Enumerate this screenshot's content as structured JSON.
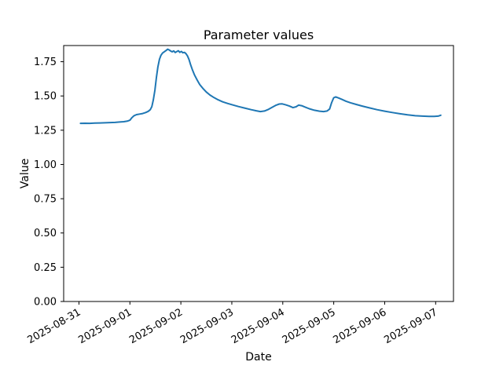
{
  "chart_data": {
    "type": "line",
    "title": "Parameter values",
    "xlabel": "Date",
    "ylabel": "Value",
    "grid": false,
    "legend": "none",
    "line_color": "#1f77b4",
    "axis_color": "#000000",
    "background_color": "#ffffff",
    "x_ticks": [
      {
        "label": "2025-08-31",
        "day": 0
      },
      {
        "label": "2025-09-01",
        "day": 1
      },
      {
        "label": "2025-09-02",
        "day": 2
      },
      {
        "label": "2025-09-03",
        "day": 3
      },
      {
        "label": "2025-09-04",
        "day": 4
      },
      {
        "label": "2025-09-05",
        "day": 5
      },
      {
        "label": "2025-09-06",
        "day": 6
      },
      {
        "label": "2025-09-07",
        "day": 7
      }
    ],
    "y_ticks": [
      {
        "label": "0.00",
        "value": 0.0
      },
      {
        "label": "0.25",
        "value": 0.25
      },
      {
        "label": "0.50",
        "value": 0.5
      },
      {
        "label": "0.75",
        "value": 0.75
      },
      {
        "label": "1.00",
        "value": 1.0
      },
      {
        "label": "1.25",
        "value": 1.25
      },
      {
        "label": "1.50",
        "value": 1.5
      },
      {
        "label": "1.75",
        "value": 1.75
      }
    ],
    "xlim_days": [
      -0.3,
      7.35
    ],
    "ylim": [
      0,
      1.868
    ],
    "x_tick_rotation_deg": 30,
    "series": [
      {
        "name": "parameter-value",
        "x_unit": "days since 2025-08-31",
        "points": [
          [
            0.03,
            1.3
          ],
          [
            0.12,
            1.301
          ],
          [
            0.21,
            1.3
          ],
          [
            0.31,
            1.302
          ],
          [
            0.41,
            1.303
          ],
          [
            0.51,
            1.304
          ],
          [
            0.61,
            1.306
          ],
          [
            0.71,
            1.307
          ],
          [
            0.8,
            1.31
          ],
          [
            0.88,
            1.312
          ],
          [
            0.95,
            1.316
          ],
          [
            1.0,
            1.323
          ],
          [
            1.04,
            1.342
          ],
          [
            1.08,
            1.356
          ],
          [
            1.13,
            1.364
          ],
          [
            1.19,
            1.368
          ],
          [
            1.25,
            1.372
          ],
          [
            1.31,
            1.379
          ],
          [
            1.36,
            1.388
          ],
          [
            1.4,
            1.4
          ],
          [
            1.43,
            1.422
          ],
          [
            1.46,
            1.472
          ],
          [
            1.49,
            1.542
          ],
          [
            1.52,
            1.635
          ],
          [
            1.55,
            1.712
          ],
          [
            1.58,
            1.768
          ],
          [
            1.61,
            1.797
          ],
          [
            1.64,
            1.813
          ],
          [
            1.68,
            1.824
          ],
          [
            1.71,
            1.832
          ],
          [
            1.74,
            1.841
          ],
          [
            1.77,
            1.836
          ],
          [
            1.8,
            1.828
          ],
          [
            1.83,
            1.822
          ],
          [
            1.86,
            1.829
          ],
          [
            1.89,
            1.817
          ],
          [
            1.92,
            1.824
          ],
          [
            1.95,
            1.83
          ],
          [
            1.98,
            1.818
          ],
          [
            2.01,
            1.825
          ],
          [
            2.04,
            1.815
          ],
          [
            2.07,
            1.818
          ],
          [
            2.1,
            1.809
          ],
          [
            2.13,
            1.792
          ],
          [
            2.16,
            1.766
          ],
          [
            2.19,
            1.73
          ],
          [
            2.23,
            1.688
          ],
          [
            2.27,
            1.652
          ],
          [
            2.32,
            1.616
          ],
          [
            2.37,
            1.584
          ],
          [
            2.43,
            1.556
          ],
          [
            2.5,
            1.529
          ],
          [
            2.57,
            1.507
          ],
          [
            2.65,
            1.488
          ],
          [
            2.73,
            1.472
          ],
          [
            2.82,
            1.457
          ],
          [
            2.92,
            1.445
          ],
          [
            3.02,
            1.434
          ],
          [
            3.13,
            1.423
          ],
          [
            3.25,
            1.412
          ],
          [
            3.38,
            1.4
          ],
          [
            3.48,
            1.392
          ],
          [
            3.56,
            1.386
          ],
          [
            3.64,
            1.39
          ],
          [
            3.72,
            1.402
          ],
          [
            3.8,
            1.419
          ],
          [
            3.87,
            1.433
          ],
          [
            3.93,
            1.441
          ],
          [
            3.99,
            1.442
          ],
          [
            4.06,
            1.435
          ],
          [
            4.13,
            1.426
          ],
          [
            4.2,
            1.415
          ],
          [
            4.26,
            1.421
          ],
          [
            4.31,
            1.433
          ],
          [
            4.37,
            1.429
          ],
          [
            4.44,
            1.419
          ],
          [
            4.52,
            1.407
          ],
          [
            4.62,
            1.396
          ],
          [
            4.72,
            1.389
          ],
          [
            4.8,
            1.386
          ],
          [
            4.87,
            1.39
          ],
          [
            4.92,
            1.405
          ],
          [
            4.96,
            1.452
          ],
          [
            5.0,
            1.487
          ],
          [
            5.04,
            1.493
          ],
          [
            5.09,
            1.486
          ],
          [
            5.16,
            1.475
          ],
          [
            5.24,
            1.462
          ],
          [
            5.33,
            1.45
          ],
          [
            5.44,
            1.438
          ],
          [
            5.56,
            1.426
          ],
          [
            5.7,
            1.413
          ],
          [
            5.85,
            1.4
          ],
          [
            6.0,
            1.389
          ],
          [
            6.15,
            1.379
          ],
          [
            6.3,
            1.37
          ],
          [
            6.45,
            1.362
          ],
          [
            6.6,
            1.356
          ],
          [
            6.74,
            1.353
          ],
          [
            6.87,
            1.351
          ],
          [
            6.97,
            1.351
          ],
          [
            7.05,
            1.353
          ],
          [
            7.1,
            1.359
          ]
        ]
      }
    ]
  }
}
